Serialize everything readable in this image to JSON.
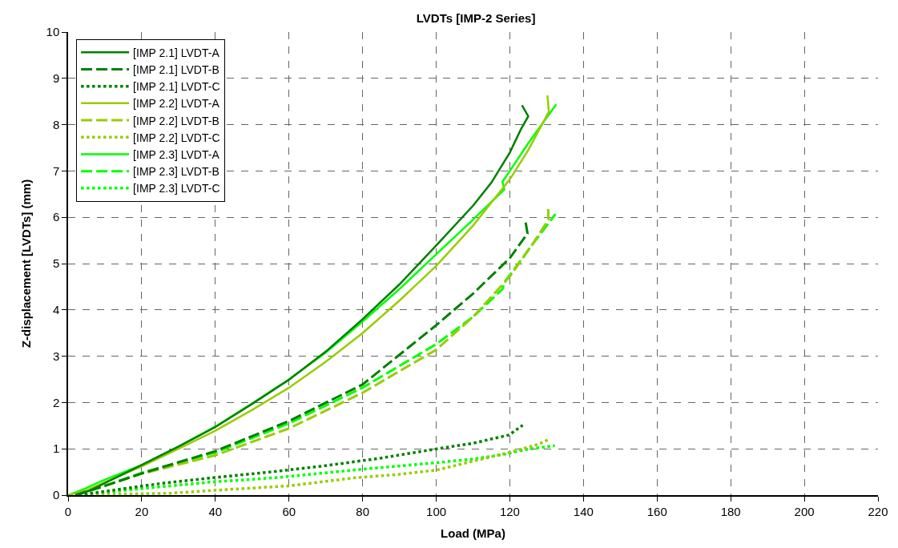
{
  "chart_data": {
    "type": "line",
    "title": "LVDTs [IMP-2 Series]",
    "xlabel": "Load (MPa)",
    "ylabel": "Z-displacement [LVDTs] (mm)",
    "xlim": [
      0,
      220
    ],
    "xticks": [
      0,
      20,
      40,
      60,
      80,
      100,
      120,
      140,
      160,
      180,
      200,
      220
    ],
    "ylim": [
      0,
      10
    ],
    "yticks": [
      0,
      1,
      2,
      3,
      4,
      5,
      6,
      7,
      8,
      9,
      10
    ],
    "grid": true,
    "legend": "top left",
    "marker": "none",
    "series": [
      {
        "name": "[IMP 2.1] LVDT-A",
        "color": "#008000",
        "line_style": "solid",
        "x": [
          2,
          6,
          11,
          20,
          30,
          40,
          50,
          60,
          70,
          80,
          90,
          100,
          110,
          115,
          120,
          123,
          125,
          123.3
        ],
        "values": [
          0,
          0.1,
          0.3,
          0.65,
          1.05,
          1.47,
          1.97,
          2.49,
          3.1,
          3.8,
          4.55,
          5.39,
          6.25,
          6.75,
          7.4,
          7.9,
          8.18,
          8.42
        ]
      },
      {
        "name": "[IMP 2.1] LVDT-B",
        "color": "#008000",
        "line_style": "dashed",
        "x": [
          2,
          10,
          20,
          40,
          60,
          80,
          100,
          110,
          120,
          124.8,
          124.2
        ],
        "values": [
          0,
          0.2,
          0.47,
          0.95,
          1.6,
          2.39,
          3.67,
          4.35,
          5.12,
          5.65,
          5.93
        ]
      },
      {
        "name": "[IMP 2.1] LVDT-C",
        "color": "#008000",
        "line_style": "dotted",
        "x": [
          3,
          11.7,
          25,
          38.7,
          55,
          69.4,
          85,
          100.2,
          110,
          119.8,
          123.5
        ],
        "values": [
          0,
          0.1,
          0.25,
          0.37,
          0.5,
          0.63,
          0.8,
          1.0,
          1.12,
          1.3,
          1.51
        ]
      },
      {
        "name": "[IMP 2.2] LVDT-A",
        "color": "#99cc00",
        "line_style": "solid",
        "x": [
          0,
          5,
          10,
          20,
          30,
          40,
          50,
          60,
          70,
          80,
          90,
          100,
          110,
          120,
          125,
          130.6,
          130.2
        ],
        "values": [
          0,
          0.1,
          0.28,
          0.62,
          1.0,
          1.39,
          1.84,
          2.32,
          2.88,
          3.5,
          4.2,
          4.95,
          5.82,
          6.82,
          7.45,
          8.28,
          8.63
        ]
      },
      {
        "name": "[IMP 2.2] LVDT-B",
        "color": "#99cc00",
        "line_style": "dashed",
        "x": [
          2,
          10,
          20,
          40,
          60,
          80,
          100,
          110,
          120,
          126,
          130.5,
          130.4
        ],
        "values": [
          0,
          0.2,
          0.46,
          0.86,
          1.44,
          2.21,
          3.14,
          3.85,
          4.72,
          5.4,
          5.95,
          6.23
        ]
      },
      {
        "name": "[IMP 2.2] LVDT-C",
        "color": "#99cc00",
        "line_style": "dotted",
        "x": [
          3,
          12.5,
          27.7,
          39,
          60,
          77.4,
          90,
          100,
          104.7,
          119.8,
          127.8,
          130.5,
          130.4
        ],
        "values": [
          0,
          0.02,
          0.04,
          0.1,
          0.2,
          0.37,
          0.45,
          0.54,
          0.63,
          0.92,
          1.1,
          1.2,
          1.24
        ]
      },
      {
        "name": "[IMP 2.3] LVDT-A",
        "color": "#00ff00",
        "line_style": "solid",
        "x": [
          0,
          4,
          9,
          20,
          30,
          40,
          50,
          60,
          70,
          80,
          90,
          100,
          110,
          118.5,
          118,
          120,
          125,
          132.6
        ],
        "values": [
          0,
          0.12,
          0.3,
          0.65,
          1.05,
          1.48,
          1.98,
          2.5,
          3.08,
          3.75,
          4.45,
          5.2,
          5.95,
          6.6,
          6.77,
          7.0,
          7.6,
          8.44
        ]
      },
      {
        "name": "[IMP 2.3] LVDT-B",
        "color": "#00ff00",
        "line_style": "dashed",
        "x": [
          2,
          10,
          20,
          40,
          60,
          80,
          100,
          110,
          118,
          118.5,
          120,
          126,
          132.4
        ],
        "values": [
          0,
          0.2,
          0.48,
          0.92,
          1.55,
          2.32,
          3.26,
          3.85,
          4.45,
          4.6,
          4.75,
          5.4,
          6.07
        ]
      },
      {
        "name": "[IMP 2.3] LVDT-C",
        "color": "#00ff00",
        "line_style": "dotted",
        "x": [
          3,
          15,
          25,
          38.5,
          57,
          80,
          100,
          110,
          118.5,
          124,
          132.2
        ],
        "values": [
          0,
          0.1,
          0.18,
          0.28,
          0.38,
          0.56,
          0.7,
          0.78,
          0.88,
          0.98,
          1.07
        ]
      }
    ]
  }
}
